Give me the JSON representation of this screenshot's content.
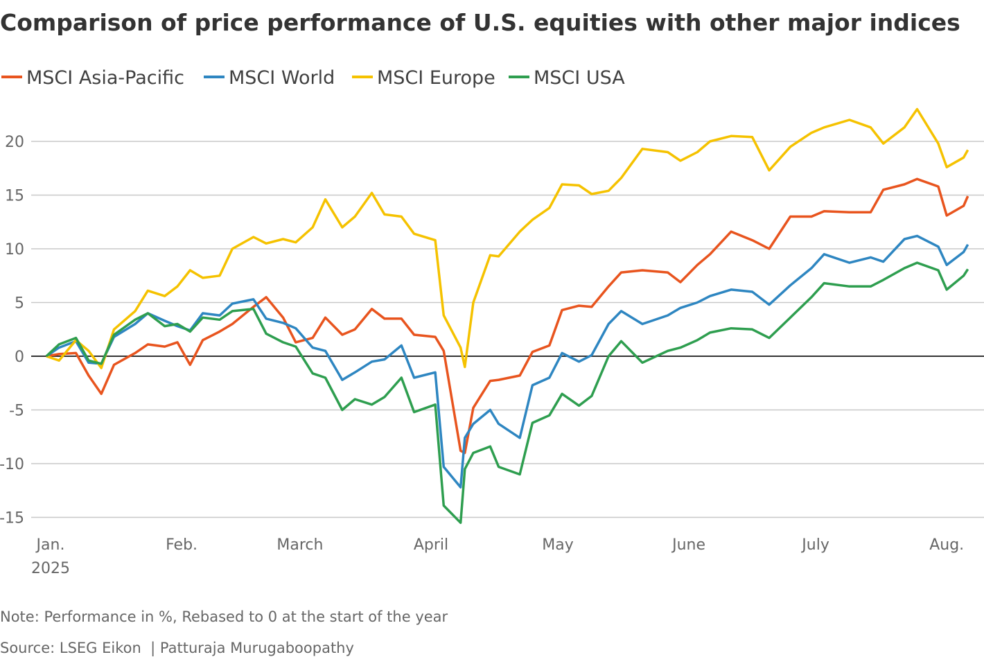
{
  "chart_data": {
    "type": "line",
    "title": "Comparison of price performance of U.S. equities with other major indices",
    "note": "Note: Performance in %, Rebased to 0 at the start of the year",
    "source": "Source: LSEG Eikon  | Patturaja Murugaboopathy",
    "xlabel": "",
    "ylabel": "",
    "ylim": [
      -16,
      23.5
    ],
    "yticks": [
      -15,
      -10,
      -5,
      0,
      5,
      10,
      15,
      20
    ],
    "xticks": [
      {
        "date": "2025-01-01",
        "label": "Jan.",
        "sublabel": "2025"
      },
      {
        "date": "2025-02-01",
        "label": "Feb."
      },
      {
        "date": "2025-03-01",
        "label": "March"
      },
      {
        "date": "2025-04-01",
        "label": "April"
      },
      {
        "date": "2025-05-01",
        "label": "May"
      },
      {
        "date": "2025-06-01",
        "label": "June"
      },
      {
        "date": "2025-07-01",
        "label": "July"
      },
      {
        "date": "2025-08-01",
        "label": "Aug."
      }
    ],
    "grid": true,
    "legend_position": "top-left",
    "x": [
      "2024-12-31",
      "2025-01-03",
      "2025-01-07",
      "2025-01-10",
      "2025-01-13",
      "2025-01-16",
      "2025-01-21",
      "2025-01-24",
      "2025-01-28",
      "2025-01-31",
      "2025-02-03",
      "2025-02-06",
      "2025-02-10",
      "2025-02-13",
      "2025-02-18",
      "2025-02-21",
      "2025-02-25",
      "2025-02-28",
      "2025-03-04",
      "2025-03-07",
      "2025-03-11",
      "2025-03-14",
      "2025-03-18",
      "2025-03-21",
      "2025-03-25",
      "2025-03-28",
      "2025-04-02",
      "2025-04-04",
      "2025-04-08",
      "2025-04-09",
      "2025-04-11",
      "2025-04-15",
      "2025-04-17",
      "2025-04-22",
      "2025-04-25",
      "2025-04-29",
      "2025-05-02",
      "2025-05-06",
      "2025-05-09",
      "2025-05-13",
      "2025-05-16",
      "2025-05-21",
      "2025-05-27",
      "2025-05-30",
      "2025-06-03",
      "2025-06-06",
      "2025-06-11",
      "2025-06-16",
      "2025-06-20",
      "2025-06-25",
      "2025-06-30",
      "2025-07-03",
      "2025-07-09",
      "2025-07-14",
      "2025-07-17",
      "2025-07-22",
      "2025-07-25",
      "2025-07-30",
      "2025-08-01",
      "2025-08-05",
      "2025-08-06"
    ],
    "series": [
      {
        "name": "MSCI Asia-Pacific",
        "color": "#E8541E",
        "values": [
          0,
          0.2,
          0.3,
          -1.8,
          -3.5,
          -0.8,
          0.3,
          1.1,
          0.9,
          1.3,
          -0.8,
          1.5,
          2.3,
          3.0,
          4.6,
          5.5,
          3.6,
          1.3,
          1.7,
          3.6,
          2.0,
          2.5,
          4.4,
          3.5,
          3.5,
          2.0,
          1.8,
          0.5,
          -8.8,
          -9.0,
          -4.8,
          -2.3,
          -2.2,
          -1.8,
          0.4,
          1.0,
          4.3,
          4.7,
          4.6,
          6.5,
          7.8,
          8.0,
          7.8,
          6.9,
          8.5,
          9.5,
          11.6,
          10.8,
          10.0,
          13.0,
          13.0,
          13.5,
          13.4,
          13.4,
          15.5,
          16.0,
          16.5,
          15.8,
          13.1,
          14.0,
          14.9
        ]
      },
      {
        "name": "MSCI World",
        "color": "#2E86C1",
        "values": [
          0,
          0.8,
          1.4,
          -0.6,
          -0.7,
          1.8,
          3.0,
          4.0,
          3.3,
          2.8,
          2.4,
          4.0,
          3.8,
          4.9,
          5.3,
          3.5,
          3.1,
          2.6,
          0.8,
          0.5,
          -2.2,
          -1.5,
          -0.5,
          -0.3,
          1.0,
          -2.0,
          -1.5,
          -10.3,
          -12.2,
          -7.6,
          -6.3,
          -5.0,
          -6.3,
          -7.6,
          -2.7,
          -2.0,
          0.3,
          -0.5,
          0.1,
          3.0,
          4.2,
          3.0,
          3.8,
          4.5,
          5.0,
          5.6,
          6.2,
          6.0,
          4.8,
          6.6,
          8.2,
          9.5,
          8.7,
          9.2,
          8.8,
          10.9,
          11.2,
          10.2,
          8.5,
          9.7,
          10.4
        ]
      },
      {
        "name": "MSCI Europe",
        "color": "#F5C200",
        "values": [
          0,
          -0.4,
          1.5,
          0.5,
          -1.1,
          2.5,
          4.2,
          6.1,
          5.6,
          6.5,
          8.0,
          7.3,
          7.5,
          10.0,
          11.1,
          10.5,
          10.9,
          10.6,
          12.0,
          14.6,
          12.0,
          13.0,
          15.2,
          13.2,
          13.0,
          11.4,
          10.8,
          3.8,
          0.8,
          -1.0,
          5.0,
          9.4,
          9.3,
          11.6,
          12.7,
          13.8,
          16.0,
          15.9,
          15.1,
          15.4,
          16.6,
          19.3,
          19.0,
          18.2,
          19.0,
          20.0,
          20.5,
          20.4,
          17.3,
          19.5,
          20.8,
          21.3,
          22.0,
          21.3,
          19.8,
          21.3,
          23.0,
          19.8,
          17.6,
          18.5,
          19.2
        ]
      },
      {
        "name": "MSCI USA",
        "color": "#2E9E4F",
        "values": [
          0,
          1.1,
          1.7,
          -0.4,
          -0.7,
          2.0,
          3.4,
          4.0,
          2.8,
          3.0,
          2.3,
          3.6,
          3.4,
          4.2,
          4.4,
          2.1,
          1.3,
          0.9,
          -1.6,
          -2.0,
          -5.0,
          -4.0,
          -4.5,
          -3.8,
          -2.0,
          -5.2,
          -4.5,
          -13.9,
          -15.5,
          -10.5,
          -9.0,
          -8.4,
          -10.3,
          -11.0,
          -6.2,
          -5.5,
          -3.5,
          -4.6,
          -3.7,
          0.0,
          1.4,
          -0.6,
          0.5,
          0.8,
          1.5,
          2.2,
          2.6,
          2.5,
          1.7,
          3.6,
          5.5,
          6.8,
          6.5,
          6.5,
          7.1,
          8.2,
          8.7,
          8.0,
          6.2,
          7.5,
          8.1
        ]
      }
    ]
  }
}
